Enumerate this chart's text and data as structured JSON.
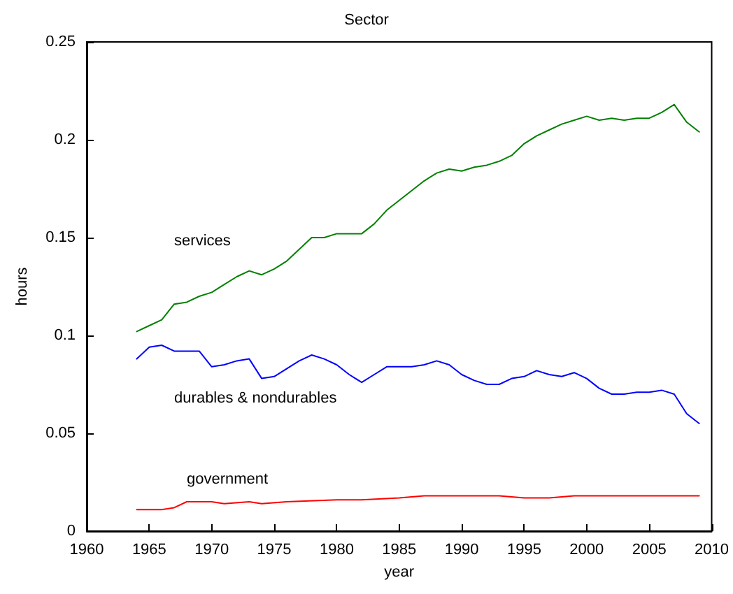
{
  "chart_data": {
    "type": "line",
    "title": "Sector",
    "xlabel": "year",
    "ylabel": "hours",
    "xlim": [
      1960,
      2010
    ],
    "xticks": [
      1960,
      1965,
      1970,
      1975,
      1980,
      1985,
      1990,
      1995,
      2000,
      2005,
      2010
    ],
    "ylim": [
      0,
      0.25
    ],
    "yticks": [
      0,
      0.05,
      0.1,
      0.15,
      0.2,
      0.25
    ],
    "grid": false,
    "marker": "none",
    "line_style": "solid",
    "series": [
      {
        "name": "services",
        "color": "#008000",
        "x": [
          1964,
          1965,
          1966,
          1967,
          1968,
          1969,
          1970,
          1971,
          1972,
          1973,
          1974,
          1975,
          1976,
          1977,
          1978,
          1979,
          1980,
          1981,
          1982,
          1983,
          1984,
          1985,
          1986,
          1987,
          1988,
          1989,
          1990,
          1991,
          1992,
          1993,
          1994,
          1995,
          1996,
          1997,
          1998,
          1999,
          2000,
          2001,
          2002,
          2003,
          2004,
          2005,
          2006,
          2007,
          2008,
          2009
        ],
        "values": [
          0.102,
          0.105,
          0.108,
          0.116,
          0.117,
          0.12,
          0.122,
          0.126,
          0.13,
          0.133,
          0.131,
          0.134,
          0.138,
          0.144,
          0.15,
          0.15,
          0.152,
          0.152,
          0.152,
          0.157,
          0.164,
          0.169,
          0.174,
          0.179,
          0.183,
          0.185,
          0.184,
          0.186,
          0.187,
          0.189,
          0.192,
          0.198,
          0.202,
          0.205,
          0.208,
          0.21,
          0.212,
          0.21,
          0.211,
          0.21,
          0.211,
          0.211,
          0.214,
          0.218,
          0.209,
          0.204
        ]
      },
      {
        "name": "durables & nondurables",
        "color": "#0000ff",
        "x": [
          1964,
          1965,
          1966,
          1967,
          1968,
          1969,
          1970,
          1971,
          1972,
          1973,
          1974,
          1975,
          1976,
          1977,
          1978,
          1979,
          1980,
          1981,
          1982,
          1983,
          1984,
          1985,
          1986,
          1987,
          1988,
          1989,
          1990,
          1991,
          1992,
          1993,
          1994,
          1995,
          1996,
          1997,
          1998,
          1999,
          2000,
          2001,
          2002,
          2003,
          2004,
          2005,
          2006,
          2007,
          2008,
          2009
        ],
        "values": [
          0.088,
          0.094,
          0.095,
          0.092,
          0.092,
          0.092,
          0.084,
          0.085,
          0.087,
          0.088,
          0.078,
          0.079,
          0.083,
          0.087,
          0.09,
          0.088,
          0.085,
          0.08,
          0.076,
          0.08,
          0.084,
          0.084,
          0.084,
          0.085,
          0.087,
          0.085,
          0.08,
          0.077,
          0.075,
          0.075,
          0.078,
          0.079,
          0.082,
          0.08,
          0.079,
          0.081,
          0.078,
          0.073,
          0.07,
          0.07,
          0.071,
          0.071,
          0.072,
          0.07,
          0.06,
          0.055
        ]
      },
      {
        "name": "government",
        "color": "#ff0000",
        "x": [
          1964,
          1966,
          1967,
          1968,
          1970,
          1971,
          1973,
          1974,
          1976,
          1980,
          1982,
          1985,
          1987,
          1990,
          1993,
          1995,
          1997,
          1999,
          2001,
          2003,
          2005,
          2007,
          2009
        ],
        "values": [
          0.011,
          0.011,
          0.012,
          0.015,
          0.015,
          0.014,
          0.015,
          0.014,
          0.015,
          0.016,
          0.016,
          0.017,
          0.018,
          0.018,
          0.018,
          0.017,
          0.017,
          0.018,
          0.018,
          0.018,
          0.018,
          0.018,
          0.018
        ]
      }
    ]
  }
}
